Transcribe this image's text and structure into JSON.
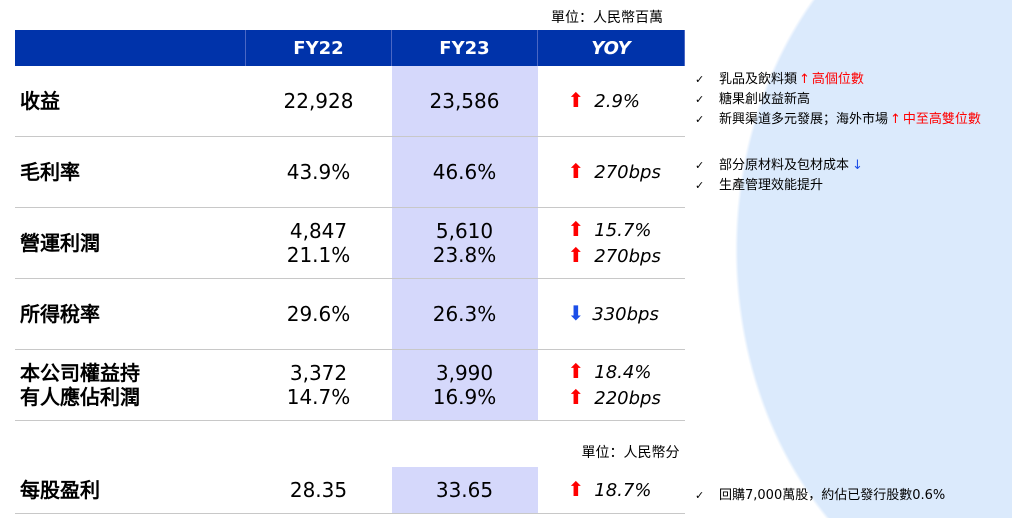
{
  "unit_top": "單位：人民幣百萬",
  "unit_eps": "單位：人民幣分",
  "header": {
    "col1": "FY22",
    "col2": "FY23",
    "col3": "YOY"
  },
  "rows": [
    {
      "label": "收益",
      "fy22": "22,928",
      "fy23": "23,586",
      "yoy": [
        {
          "dir": "up",
          "value": "2.9%"
        }
      ]
    },
    {
      "label": "毛利率",
      "fy22": "43.9%",
      "fy23": "46.6%",
      "yoy": [
        {
          "dir": "up",
          "value": "270bps"
        }
      ]
    },
    {
      "label": "營運利潤",
      "fy22": [
        "4,847",
        "21.1%"
      ],
      "fy23": [
        "5,610",
        "23.8%"
      ],
      "yoy": [
        {
          "dir": "up",
          "value": "15.7%"
        },
        {
          "dir": "up",
          "value": "270bps"
        }
      ]
    },
    {
      "label": "所得稅率",
      "fy22": "29.6%",
      "fy23": "26.3%",
      "yoy": [
        {
          "dir": "down",
          "value": "330bps"
        }
      ]
    },
    {
      "label": [
        "本公司權益持",
        "有人應佔利潤"
      ],
      "fy22": [
        "3,372",
        "14.7%"
      ],
      "fy23": [
        "3,990",
        "16.9%"
      ],
      "yoy": [
        {
          "dir": "up",
          "value": "18.4%"
        },
        {
          "dir": "up",
          "value": "220bps"
        }
      ]
    }
  ],
  "eps": {
    "label": "每股盈利",
    "fy22": "28.35",
    "fy23": "33.65",
    "yoy": {
      "dir": "up",
      "value": "18.7%"
    }
  },
  "notes_revenue": [
    {
      "text": "乳品及飲料類",
      "arrow": "↑",
      "highlight": "高個位數"
    },
    {
      "text": "糖果創收益新高"
    },
    {
      "text": "新興渠道多元發展；海外市場",
      "arrow": "↑",
      "highlight": "中至高雙位數"
    }
  ],
  "notes_margin": [
    {
      "text": "部分原材料及包材成本",
      "arrow_down": "↓"
    },
    {
      "text": "生產管理效能提升"
    }
  ],
  "notes_eps": [
    {
      "text": "回購7,000萬股，約佔已發行股數0.6%"
    }
  ],
  "check_glyph": "✓",
  "colors": {
    "header": "#0033aa",
    "fy23_column": "#d5d8fb",
    "up": "#ff0000",
    "down": "#1c4ee8",
    "background_shape": "#dbeafc"
  }
}
